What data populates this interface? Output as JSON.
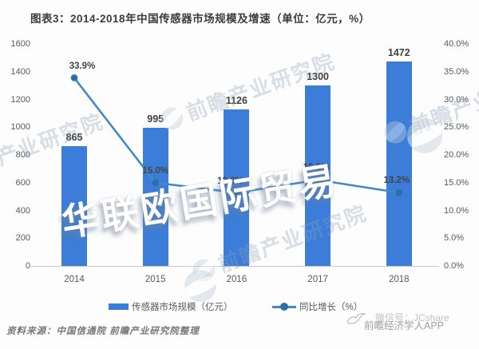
{
  "title": "图表3：2014-2018年中国传感器市场规模及增速（单位：亿元，%）",
  "chart_data": {
    "type": "bar+line combo",
    "categories": [
      "2014",
      "2015",
      "2016",
      "2017",
      "2018"
    ],
    "series": [
      {
        "name": "传感器市场规模（亿元）",
        "type": "bar",
        "axis": "left",
        "values": [
          865,
          995,
          1126,
          1300,
          1472
        ],
        "labels": [
          "865",
          "995",
          "1126",
          "1300",
          "1472"
        ],
        "color": "#3b7dd8"
      },
      {
        "name": "同比增长（%）",
        "type": "line",
        "axis": "right",
        "values": [
          33.9,
          15.0,
          13.2,
          15.5,
          13.2
        ],
        "labels": [
          "33.9%",
          "15.0%",
          "13.2%",
          "15.5%",
          "13.2%"
        ],
        "color": "#4389c8",
        "marker_color": "#2d6da9"
      }
    ],
    "left_axis": {
      "min": 0,
      "max": 1600,
      "step": 200,
      "ticks": [
        "0",
        "200",
        "400",
        "600",
        "800",
        "1000",
        "1200",
        "1400",
        "1600"
      ]
    },
    "right_axis": {
      "min": 0,
      "max": 40,
      "step": 5,
      "ticks": [
        "0.0%",
        "5.0%",
        "10.0%",
        "15.0%",
        "20.0%",
        "25.0%",
        "30.0%",
        "35.0%",
        "40.0%"
      ]
    },
    "legend": [
      "传感器市场规模（亿元）",
      "同比增长（%）"
    ],
    "grid": "off",
    "legend_position": "bottom"
  },
  "source_note": "资料来源：中国信通院  前瞻产业研究院整理",
  "watermarks": {
    "overlay": "华联欧国际贸易",
    "brand": "前瞻产业研究院",
    "wechat": "微信号：JCshare",
    "app": "前瞻经济学人APP"
  },
  "colors": {
    "bar": "#3b7dd8",
    "line": "#4389c8",
    "marker": "#2d6da9",
    "axis_text": "#595959",
    "data_label": "#3f3f3f",
    "title_text": "#3c3c3c"
  }
}
